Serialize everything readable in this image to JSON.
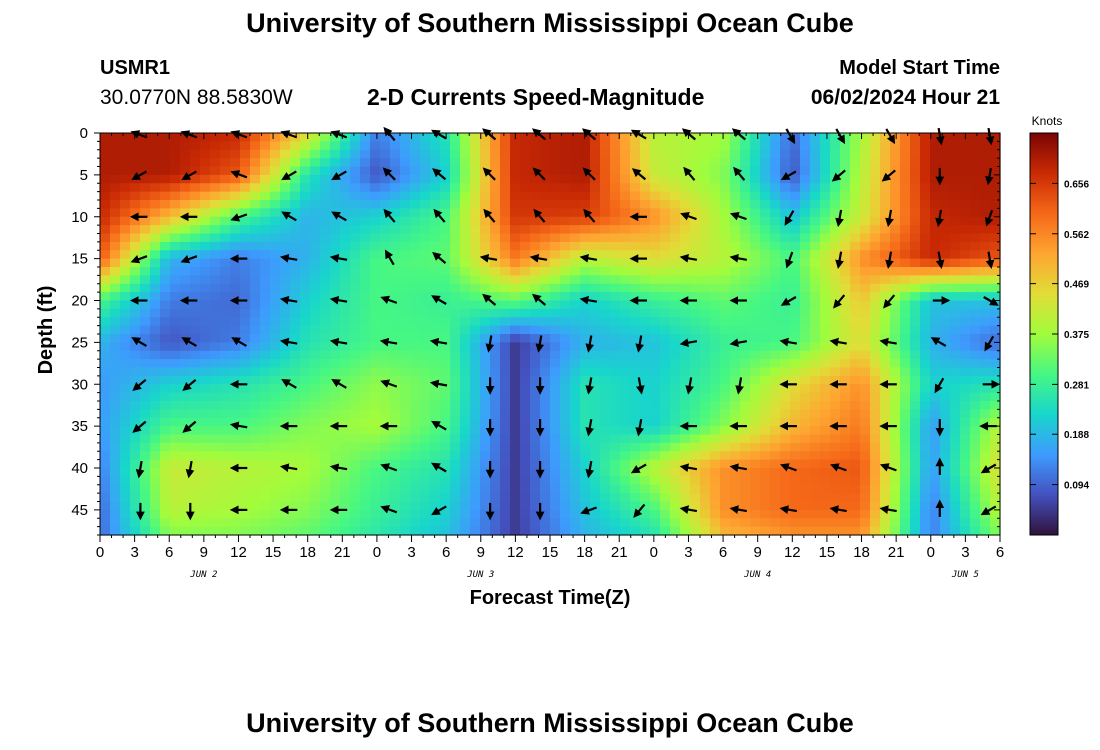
{
  "header": {
    "title": "University of Southern Mississippi Ocean Cube",
    "station_id": "USMR1",
    "station_coords": "30.0770N  88.5830W",
    "plot_title": "2-D Currents Speed-Magnitude",
    "model_start_label": "Model Start Time",
    "model_start_value": "06/02/2024 Hour 21"
  },
  "footer": {
    "title": "University of Southern Mississippi Ocean Cube"
  },
  "chart_data": {
    "type": "heatmap",
    "title": "2-D Currents Speed-Magnitude",
    "xlabel": "Forecast Time(Z)",
    "ylabel": "Depth (ft)",
    "x_tick_labels": [
      "0",
      "3",
      "6",
      "9",
      "12",
      "15",
      "18",
      "21",
      "0",
      "3",
      "6",
      "9",
      "12",
      "15",
      "18",
      "21",
      "0",
      "3",
      "6",
      "9",
      "12",
      "15",
      "18",
      "21",
      "0",
      "3",
      "6"
    ],
    "date_labels": [
      "JUN 2",
      "JUN 3",
      "JUN 4",
      "JUN 5"
    ],
    "y_tick_labels": [
      "0",
      "5",
      "10",
      "15",
      "20",
      "25",
      "30",
      "35",
      "40",
      "45"
    ],
    "ylim": [
      0,
      48
    ],
    "y_inverted": true,
    "x_hours_range": [
      0,
      78
    ],
    "colorbar": {
      "label": "Knots",
      "ticks": [
        "0.656",
        "0.562",
        "0.469",
        "0.375",
        "0.281",
        "0.188",
        "0.094"
      ],
      "tick_values": [
        0.656,
        0.562,
        0.469,
        0.375,
        0.281,
        0.188,
        0.094
      ],
      "range": [
        0.0,
        0.75
      ],
      "colormap": "turbo"
    },
    "grid_hours": [
      0,
      6,
      12,
      18,
      24,
      30,
      36,
      42,
      48,
      54,
      60,
      66,
      72,
      78
    ],
    "grid_depths": [
      0,
      5,
      10,
      15,
      20,
      25,
      30,
      35,
      40,
      45,
      48
    ],
    "speed_knots": [
      [
        0.7,
        0.7,
        0.68,
        0.45,
        0.12,
        0.25,
        0.68,
        0.7,
        0.4,
        0.38,
        0.1,
        0.38,
        0.7,
        0.7
      ],
      [
        0.7,
        0.7,
        0.62,
        0.25,
        0.08,
        0.22,
        0.68,
        0.7,
        0.42,
        0.35,
        0.08,
        0.4,
        0.7,
        0.7
      ],
      [
        0.68,
        0.5,
        0.3,
        0.18,
        0.22,
        0.3,
        0.66,
        0.65,
        0.55,
        0.38,
        0.2,
        0.42,
        0.68,
        0.7
      ],
      [
        0.62,
        0.18,
        0.12,
        0.18,
        0.3,
        0.32,
        0.58,
        0.4,
        0.45,
        0.4,
        0.3,
        0.55,
        0.68,
        0.62
      ],
      [
        0.3,
        0.12,
        0.1,
        0.22,
        0.3,
        0.28,
        0.32,
        0.22,
        0.28,
        0.32,
        0.28,
        0.48,
        0.2,
        0.2
      ],
      [
        0.18,
        0.08,
        0.12,
        0.25,
        0.3,
        0.3,
        0.05,
        0.18,
        0.2,
        0.28,
        0.3,
        0.45,
        0.18,
        0.1
      ],
      [
        0.15,
        0.22,
        0.25,
        0.3,
        0.36,
        0.32,
        0.05,
        0.25,
        0.22,
        0.3,
        0.45,
        0.55,
        0.22,
        0.25
      ],
      [
        0.15,
        0.3,
        0.3,
        0.35,
        0.38,
        0.3,
        0.05,
        0.25,
        0.22,
        0.35,
        0.5,
        0.58,
        0.15,
        0.4
      ],
      [
        0.12,
        0.42,
        0.4,
        0.38,
        0.3,
        0.25,
        0.05,
        0.22,
        0.4,
        0.55,
        0.6,
        0.62,
        0.15,
        0.45
      ],
      [
        0.1,
        0.4,
        0.38,
        0.35,
        0.28,
        0.22,
        0.05,
        0.2,
        0.3,
        0.55,
        0.6,
        0.6,
        0.12,
        0.4
      ],
      [
        0.1,
        0.35,
        0.35,
        0.32,
        0.26,
        0.2,
        0.05,
        0.18,
        0.25,
        0.5,
        0.55,
        0.55,
        0.12,
        0.35
      ]
    ],
    "arrow_angles_deg": [
      [
        200,
        200,
        200,
        200,
        230,
        210,
        220,
        220,
        210,
        220,
        60,
        60,
        80,
        80
      ],
      [
        200,
        150,
        200,
        150,
        225,
        220,
        225,
        225,
        220,
        230,
        150,
        140,
        90,
        100
      ],
      [
        180,
        180,
        160,
        210,
        230,
        230,
        230,
        230,
        180,
        200,
        120,
        100,
        100,
        110
      ],
      [
        180,
        160,
        180,
        190,
        240,
        220,
        190,
        190,
        180,
        190,
        110,
        100,
        80,
        80
      ],
      [
        180,
        180,
        180,
        190,
        200,
        210,
        220,
        190,
        180,
        180,
        150,
        130,
        0,
        30
      ],
      [
        210,
        210,
        210,
        190,
        190,
        190,
        100,
        100,
        100,
        170,
        190,
        190,
        210,
        120
      ],
      [
        140,
        140,
        180,
        210,
        200,
        190,
        90,
        100,
        80,
        100,
        180,
        180,
        120,
        0
      ],
      [
        150,
        140,
        190,
        180,
        180,
        210,
        90,
        100,
        100,
        180,
        180,
        180,
        90,
        180
      ],
      [
        130,
        100,
        180,
        190,
        200,
        210,
        90,
        100,
        150,
        190,
        200,
        200,
        270,
        150
      ],
      [
        150,
        90,
        180,
        180,
        200,
        150,
        90,
        160,
        130,
        190,
        190,
        190,
        270,
        150
      ]
    ]
  }
}
